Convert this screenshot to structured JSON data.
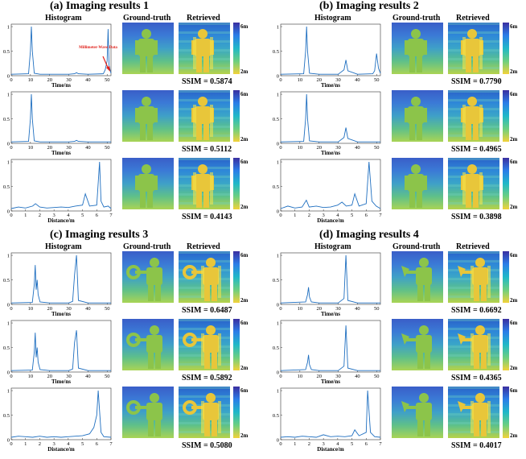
{
  "headers": {
    "histogram": "Histogram",
    "ground_truth": "Ground-truth",
    "retrieved": "Retrieved"
  },
  "colorbar": {
    "top": "6m",
    "bottom": "2m",
    "colors": [
      "#3b2fa0",
      "#2b7de8",
      "#20b8c8",
      "#6ccf80",
      "#f2d23a"
    ]
  },
  "annotation": {
    "text": "Millimeter-Wave Data",
    "color": "#e0201a"
  },
  "panels": [
    {
      "title": "(a) Imaging results 1",
      "rows": [
        {
          "xlabel": "Time/ns",
          "ssim": "SSIM = 0.5874"
        },
        {
          "xlabel": "Time/ns",
          "ssim": "SSIM = 0.5112"
        },
        {
          "xlabel": "Distance/m",
          "ssim": "SSIM = 0.4143"
        }
      ]
    },
    {
      "title": "(b) Imaging results 2",
      "rows": [
        {
          "xlabel": "Time/ns",
          "ssim": "SSIM = 0.7790"
        },
        {
          "xlabel": "Time/ns",
          "ssim": "SSIM = 0.4965"
        },
        {
          "xlabel": "Distance/m",
          "ssim": "SSIM = 0.3898"
        }
      ]
    },
    {
      "title": "(c) Imaging results 3",
      "rows": [
        {
          "xlabel": "Time/ns",
          "ssim": "SSIM = 0.6487"
        },
        {
          "xlabel": "Time/ns",
          "ssim": "SSIM = 0.5892"
        },
        {
          "xlabel": "Distance/m",
          "ssim": "SSIM = 0.5080"
        }
      ]
    },
    {
      "title": "(d) Imaging results 4",
      "rows": [
        {
          "xlabel": "Time/ns",
          "ssim": "SSIM = 0.6692"
        },
        {
          "xlabel": "Time/ns",
          "ssim": "SSIM = 0.4365"
        },
        {
          "xlabel": "Distance/m",
          "ssim": "SSIM = 0.4017"
        }
      ]
    }
  ],
  "chart_data": [
    {
      "panel": "a",
      "row": 1,
      "type": "line",
      "xlabel": "Time/ns",
      "xticks": [
        "0",
        "10",
        "20",
        "30",
        "40",
        "50"
      ],
      "yticks": [
        "0",
        "0.5",
        "1"
      ],
      "xlim": [
        0,
        52
      ],
      "ylim": [
        0,
        1.05
      ],
      "x": [
        0,
        9,
        10,
        10.5,
        11,
        12,
        15,
        20,
        30,
        33,
        34,
        35,
        40,
        48,
        49,
        50,
        50.5,
        51,
        52
      ],
      "y": [
        0.03,
        0.04,
        0.5,
        1.0,
        0.5,
        0.05,
        0.03,
        0.03,
        0.03,
        0.04,
        0.06,
        0.04,
        0.03,
        0.04,
        0.12,
        0.3,
        0.95,
        0.2,
        0.05
      ]
    },
    {
      "panel": "a",
      "row": 2,
      "type": "line",
      "xlabel": "Time/ns",
      "xticks": [
        "0",
        "10",
        "20",
        "30",
        "40",
        "50"
      ],
      "yticks": [
        "0",
        "0.5",
        "1"
      ],
      "xlim": [
        0,
        52
      ],
      "ylim": [
        0,
        1.05
      ],
      "x": [
        0,
        9,
        10,
        10.5,
        11,
        12,
        15,
        20,
        30,
        33,
        34,
        35,
        40,
        52
      ],
      "y": [
        0.03,
        0.04,
        0.5,
        1.0,
        0.5,
        0.05,
        0.03,
        0.03,
        0.03,
        0.04,
        0.06,
        0.04,
        0.03,
        0.03
      ]
    },
    {
      "panel": "a",
      "row": 3,
      "type": "line",
      "xlabel": "Distance/m",
      "xticks": [
        "0",
        "1",
        "2",
        "3",
        "4",
        "5",
        "6",
        "7"
      ],
      "yticks": [
        "0",
        "0.5",
        "1"
      ],
      "xlim": [
        0,
        7
      ],
      "ylim": [
        0,
        1.05
      ],
      "x": [
        0,
        0.5,
        1,
        1.5,
        1.7,
        2,
        2.5,
        3,
        3.5,
        4,
        4.5,
        5,
        5.2,
        5.5,
        6,
        6.2,
        6.3,
        6.5,
        6.8,
        7
      ],
      "y": [
        0.05,
        0.08,
        0.06,
        0.1,
        0.15,
        0.08,
        0.06,
        0.07,
        0.08,
        0.07,
        0.1,
        0.12,
        0.35,
        0.1,
        0.12,
        1.0,
        0.2,
        0.08,
        0.1,
        0.05
      ]
    },
    {
      "panel": "b",
      "row": 1,
      "type": "line",
      "xlabel": "Time/ns",
      "xticks": [
        "0",
        "10",
        "20",
        "30",
        "40",
        "50"
      ],
      "yticks": [
        "0",
        "0.5",
        "1"
      ],
      "xlim": [
        0,
        52
      ],
      "ylim": [
        0,
        1.05
      ],
      "x": [
        0,
        12,
        13,
        13.5,
        14,
        15,
        20,
        30,
        33,
        34,
        35,
        40,
        48,
        49,
        50,
        51,
        52
      ],
      "y": [
        0.03,
        0.04,
        0.5,
        1.0,
        0.5,
        0.05,
        0.03,
        0.03,
        0.12,
        0.32,
        0.1,
        0.03,
        0.04,
        0.1,
        0.45,
        0.15,
        0.05
      ]
    },
    {
      "panel": "b",
      "row": 2,
      "type": "line",
      "xlabel": "Time/ns",
      "xticks": [
        "0",
        "10",
        "20",
        "30",
        "40",
        "50"
      ],
      "yticks": [
        "0",
        "0.5",
        "1"
      ],
      "xlim": [
        0,
        52
      ],
      "ylim": [
        0,
        1.05
      ],
      "x": [
        0,
        12,
        13,
        13.5,
        14,
        15,
        20,
        30,
        33,
        34,
        35,
        40,
        52
      ],
      "y": [
        0.03,
        0.04,
        0.5,
        1.0,
        0.5,
        0.05,
        0.03,
        0.03,
        0.12,
        0.32,
        0.1,
        0.03,
        0.03
      ]
    },
    {
      "panel": "b",
      "row": 3,
      "type": "line",
      "xlabel": "Distance/m",
      "xticks": [
        "0",
        "1",
        "2",
        "3",
        "4",
        "5",
        "6",
        "7"
      ],
      "yticks": [
        "0",
        "0.5",
        "1"
      ],
      "xlim": [
        0,
        7
      ],
      "ylim": [
        0,
        1.05
      ],
      "x": [
        0,
        0.5,
        1,
        1.5,
        1.8,
        2,
        2.5,
        3,
        3.5,
        4,
        4.3,
        4.6,
        5,
        5.2,
        5.5,
        6,
        6.2,
        6.4,
        6.7,
        7
      ],
      "y": [
        0.05,
        0.1,
        0.06,
        0.08,
        0.22,
        0.08,
        0.1,
        0.07,
        0.08,
        0.12,
        0.18,
        0.1,
        0.12,
        0.35,
        0.1,
        0.15,
        1.0,
        0.2,
        0.1,
        0.05
      ]
    },
    {
      "panel": "c",
      "row": 1,
      "type": "line",
      "xlabel": "Time/ns",
      "xticks": [
        "0",
        "10",
        "20",
        "30",
        "40",
        "50"
      ],
      "yticks": [
        "0",
        "0.5",
        "1"
      ],
      "xlim": [
        0,
        52
      ],
      "ylim": [
        0,
        1.05
      ],
      "x": [
        0,
        11,
        12,
        12.5,
        13,
        13.5,
        14,
        15,
        20,
        30,
        32,
        33,
        34,
        35,
        40,
        52
      ],
      "y": [
        0.03,
        0.04,
        0.4,
        0.8,
        0.3,
        0.5,
        0.2,
        0.05,
        0.03,
        0.03,
        0.06,
        0.6,
        1.0,
        0.08,
        0.03,
        0.03
      ]
    },
    {
      "panel": "c",
      "row": 2,
      "type": "line",
      "xlabel": "Time/ns",
      "xticks": [
        "0",
        "10",
        "20",
        "30",
        "40",
        "50"
      ],
      "yticks": [
        "0",
        "0.5",
        "1"
      ],
      "xlim": [
        0,
        52
      ],
      "ylim": [
        0,
        1.05
      ],
      "x": [
        0,
        11,
        12,
        12.5,
        13,
        13.5,
        14,
        15,
        20,
        30,
        32,
        33,
        34,
        35,
        40,
        52
      ],
      "y": [
        0.03,
        0.04,
        0.4,
        0.8,
        0.3,
        0.5,
        0.2,
        0.05,
        0.03,
        0.03,
        0.06,
        0.6,
        0.85,
        0.08,
        0.03,
        0.03
      ]
    },
    {
      "panel": "c",
      "row": 3,
      "type": "line",
      "xlabel": "Distance/m",
      "xticks": [
        "0",
        "1",
        "2",
        "3",
        "4",
        "5",
        "6",
        "7"
      ],
      "yticks": [
        "0",
        "0.5",
        "1"
      ],
      "xlim": [
        0,
        7
      ],
      "ylim": [
        0,
        1.05
      ],
      "x": [
        0,
        0.5,
        1,
        1.5,
        2,
        2.5,
        3,
        3.5,
        4,
        4.5,
        5,
        5.5,
        5.8,
        6,
        6.1,
        6.3,
        6.5,
        7
      ],
      "y": [
        0.05,
        0.07,
        0.06,
        0.05,
        0.07,
        0.05,
        0.06,
        0.05,
        0.06,
        0.07,
        0.08,
        0.12,
        0.25,
        0.5,
        1.0,
        0.15,
        0.06,
        0.05
      ]
    },
    {
      "panel": "d",
      "row": 1,
      "type": "line",
      "xlabel": "Time/ns",
      "xticks": [
        "0",
        "10",
        "20",
        "30",
        "40",
        "50"
      ],
      "yticks": [
        "0",
        "0.5",
        "1"
      ],
      "xlim": [
        0,
        52
      ],
      "ylim": [
        0,
        1.05
      ],
      "x": [
        0,
        13,
        14,
        14.5,
        15,
        16,
        20,
        30,
        33,
        34,
        35,
        40,
        52
      ],
      "y": [
        0.03,
        0.05,
        0.2,
        0.35,
        0.15,
        0.05,
        0.03,
        0.03,
        0.12,
        1.0,
        0.08,
        0.03,
        0.03
      ]
    },
    {
      "panel": "d",
      "row": 2,
      "type": "line",
      "xlabel": "Time/ns",
      "xticks": [
        "0",
        "10",
        "20",
        "30",
        "40",
        "50"
      ],
      "yticks": [
        "0",
        "0.5",
        "1"
      ],
      "xlim": [
        0,
        52
      ],
      "ylim": [
        0,
        1.05
      ],
      "x": [
        0,
        13,
        14,
        14.5,
        15,
        16,
        20,
        30,
        33,
        34,
        35,
        40,
        52
      ],
      "y": [
        0.03,
        0.05,
        0.2,
        0.35,
        0.15,
        0.05,
        0.03,
        0.03,
        0.12,
        0.95,
        0.08,
        0.03,
        0.03
      ]
    },
    {
      "panel": "d",
      "row": 3,
      "type": "line",
      "xlabel": "Distance/m",
      "xticks": [
        "0",
        "1",
        "2",
        "3",
        "4",
        "5",
        "6",
        "7"
      ],
      "yticks": [
        "0",
        "0.5",
        "1"
      ],
      "xlim": [
        0,
        7
      ],
      "ylim": [
        0,
        1.05
      ],
      "x": [
        0,
        0.5,
        1,
        1.5,
        2,
        2.5,
        3,
        3.5,
        4,
        4.5,
        5,
        5.2,
        5.5,
        6,
        6.1,
        6.3,
        6.6,
        7
      ],
      "y": [
        0.05,
        0.06,
        0.05,
        0.07,
        0.06,
        0.05,
        0.1,
        0.06,
        0.07,
        0.06,
        0.08,
        0.2,
        0.08,
        0.15,
        1.0,
        0.15,
        0.06,
        0.05
      ]
    }
  ]
}
